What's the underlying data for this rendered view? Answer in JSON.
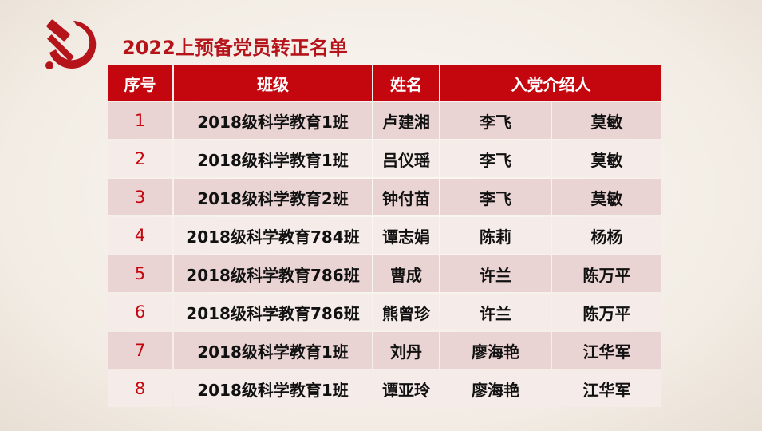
{
  "title": "2022上预备党员转正名单",
  "logo": "hammer-sickle-icon",
  "colors": {
    "accent": "#c4060e"
  },
  "table": {
    "headers": [
      "序号",
      "班级",
      "姓名",
      "入党介绍人"
    ],
    "rows": [
      [
        "1",
        "2018级科学教育1班",
        "卢建湘",
        "李飞",
        "莫敏"
      ],
      [
        "2",
        "2018级科学教育1班",
        "吕仪瑶",
        "李飞",
        "莫敏"
      ],
      [
        "3",
        "2018级科学教育2班",
        "钟付苗",
        "李飞",
        "莫敏"
      ],
      [
        "4",
        "2018级科学教育784班",
        "谭志娟",
        "陈莉",
        "杨杨"
      ],
      [
        "5",
        "2018级科学教育786班",
        "曹成",
        "许兰",
        "陈万平"
      ],
      [
        "6",
        "2018级科学教育786班",
        "熊曾珍",
        "许兰",
        "陈万平"
      ],
      [
        "7",
        "2018级科学教育1班",
        "刘丹",
        "廖海艳",
        "江华军"
      ],
      [
        "8",
        "2018级科学教育1班",
        "谭亚玲",
        "廖海艳",
        "江华军"
      ]
    ]
  }
}
